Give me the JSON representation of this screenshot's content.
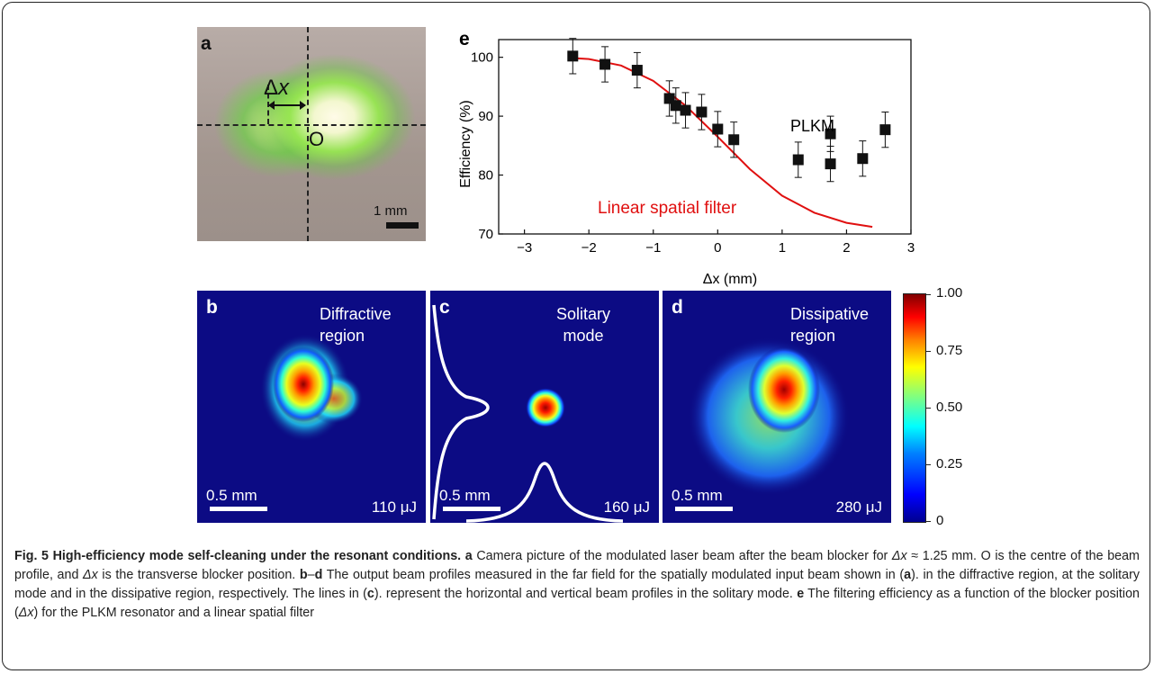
{
  "panel_a": {
    "letter": "a",
    "delta_x_label": "Δ",
    "delta_x_var": "x",
    "origin_label": "O",
    "scale_text": "1 mm"
  },
  "panel_b": {
    "letter": "b",
    "label_line1": "Diffractive",
    "label_line2": "region",
    "scale_text": "0.5 mm",
    "energy": "110 μJ"
  },
  "panel_c": {
    "letter": "c",
    "label_line1": "Solitary",
    "label_line2": "mode",
    "scale_text": "0.5 mm",
    "energy": "160 μJ"
  },
  "panel_d": {
    "letter": "d",
    "label_line1": "Dissipative",
    "label_line2": "region",
    "scale_text": "0.5 mm",
    "energy": "280 μJ"
  },
  "colorbar": {
    "ticks": [
      "1.00",
      "0.75",
      "0.50",
      "0.25",
      "0"
    ]
  },
  "chart_data": {
    "type": "scatter",
    "panel_letter": "e",
    "xlabel": "Δx (mm)",
    "ylabel": "Efficiency (%)",
    "xlim": [
      -3.4,
      3
    ],
    "ylim": [
      70,
      103
    ],
    "xticks": [
      "−3",
      "−2",
      "−1",
      "0",
      "1",
      "2",
      "3"
    ],
    "yticks": [
      "70",
      "80",
      "90",
      "100"
    ],
    "annotations": {
      "plkm": "PLKM",
      "linear": "Linear spatial filter"
    },
    "series": [
      {
        "name": "PLKM",
        "marker": "square",
        "color": "#111111",
        "x": [
          -2.25,
          -1.75,
          -1.25,
          -0.75,
          -0.65,
          -0.5,
          -0.25,
          0.0,
          0.25,
          1.25,
          1.75,
          1.75,
          2.25,
          2.6
        ],
        "y": [
          100.2,
          98.8,
          97.8,
          93.0,
          91.8,
          91.0,
          90.7,
          87.8,
          86.0,
          82.6,
          87.0,
          81.9,
          82.8,
          87.7
        ],
        "err": [
          3,
          3,
          3,
          3,
          3,
          3,
          3,
          3,
          3,
          3,
          3,
          3,
          3,
          3
        ]
      },
      {
        "name": "Linear spatial filter",
        "type": "line",
        "color": "#e01010",
        "x": [
          -2.3,
          -2.0,
          -1.5,
          -1.0,
          -0.5,
          0.0,
          0.5,
          1.0,
          1.5,
          2.0,
          2.4
        ],
        "y": [
          99.9,
          99.7,
          98.6,
          96.0,
          91.8,
          86.5,
          81.0,
          76.5,
          73.6,
          71.9,
          71.2
        ]
      }
    ]
  },
  "caption": {
    "fig_label": "Fig. 5",
    "title": "High-efficiency mode self-cleaning under the resonant conditions.",
    "a_letter": "a",
    "a_text1": "Camera picture of the modulated laser beam after the beam blocker for ",
    "dx": "Δx",
    "a_text2": " ≈ 1.25 mm. O is the centre of the beam profile, and ",
    "a_text3": " is the transverse blocker position. ",
    "bd_first": "b",
    "bd_dash": "–",
    "bd_last": "d",
    "bd_text1": " The output beam profiles measured in the far field for the spatially modulated input beam shown in (",
    "bd_text2": "). in the diffractive region, at the solitary mode and in the dissipative region, respectively. The lines in (",
    "bd_text3": "). represent the horizontal and vertical beam profiles in the solitary mode. ",
    "e_letter": "e",
    "e_text1": " The filtering efficiency as a function of the blocker position (",
    "e_text2": ") for the PLKM resonator and a linear spatial filter",
    "ref_a": "a",
    "ref_c": "c"
  }
}
